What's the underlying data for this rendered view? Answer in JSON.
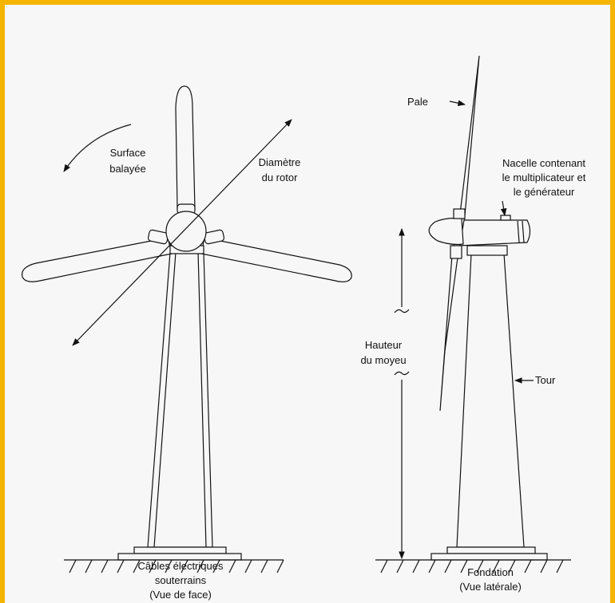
{
  "labels": {
    "swept_area": [
      "Surface",
      "balayée"
    ],
    "rotor_diameter": [
      "Diamètre",
      "du rotor"
    ],
    "blade": [
      "Pale"
    ],
    "nacelle": [
      "Nacelle contenant",
      "le multiplicateur et",
      "le générateur"
    ],
    "hub_height": [
      "Hauteur",
      "du moyeu"
    ],
    "tower": [
      "Tour"
    ],
    "front_caption": [
      "Câbles électriques",
      "souterrains",
      "(Vue de face)"
    ],
    "side_caption": [
      "Fondation",
      "(Vue latérale)"
    ]
  }
}
